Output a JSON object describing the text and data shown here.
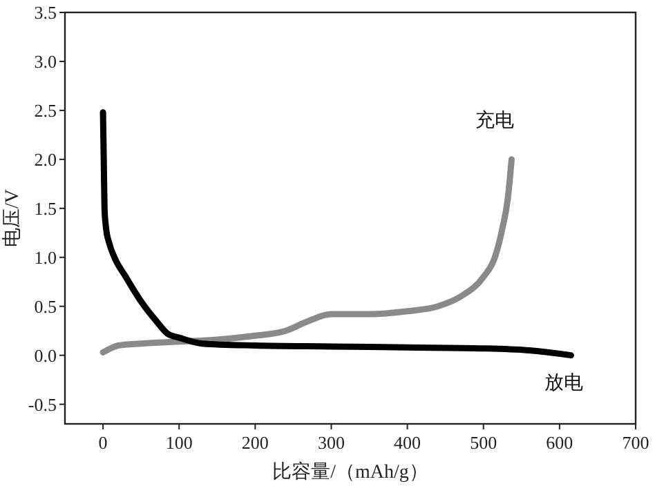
{
  "chart_data": {
    "type": "line",
    "xlabel": "比容量/（mAh/g）",
    "ylabel": "电压/V",
    "xlim": [
      -50,
      700
    ],
    "ylim": [
      -0.7,
      3.5
    ],
    "xticks": [
      0,
      100,
      200,
      300,
      400,
      500,
      600,
      700
    ],
    "yticks": [
      -0.5,
      {
        "value": 0,
        "label": "0.0"
      },
      0.5,
      {
        "value": 1,
        "label": "1.0"
      },
      1.5,
      {
        "value": 2,
        "label": "2.0"
      },
      2.5,
      {
        "value": 3,
        "label": "3.0"
      },
      3.5
    ],
    "grid": false,
    "marker": "none",
    "line_style": "solid",
    "series": [
      {
        "name": "充电",
        "color": "#8a8a8a",
        "x": [
          0,
          10,
          20,
          50,
          100,
          150,
          200,
          240,
          270,
          300,
          350,
          400,
          440,
          470,
          500,
          515,
          525,
          532,
          537
        ],
        "values": [
          0.03,
          0.07,
          0.1,
          0.12,
          0.14,
          0.16,
          0.2,
          0.25,
          0.35,
          0.42,
          0.42,
          0.45,
          0.5,
          0.6,
          0.8,
          1.0,
          1.3,
          1.6,
          2.0
        ]
      },
      {
        "name": "放电",
        "color": "#000000",
        "x": [
          0,
          1,
          2,
          4,
          8,
          15,
          30,
          50,
          70,
          85,
          100,
          130,
          200,
          300,
          400,
          500,
          560,
          615
        ],
        "values": [
          2.48,
          2.0,
          1.5,
          1.3,
          1.15,
          1.0,
          0.8,
          0.55,
          0.35,
          0.22,
          0.18,
          0.12,
          0.1,
          0.09,
          0.08,
          0.07,
          0.05,
          0.0
        ]
      }
    ]
  }
}
